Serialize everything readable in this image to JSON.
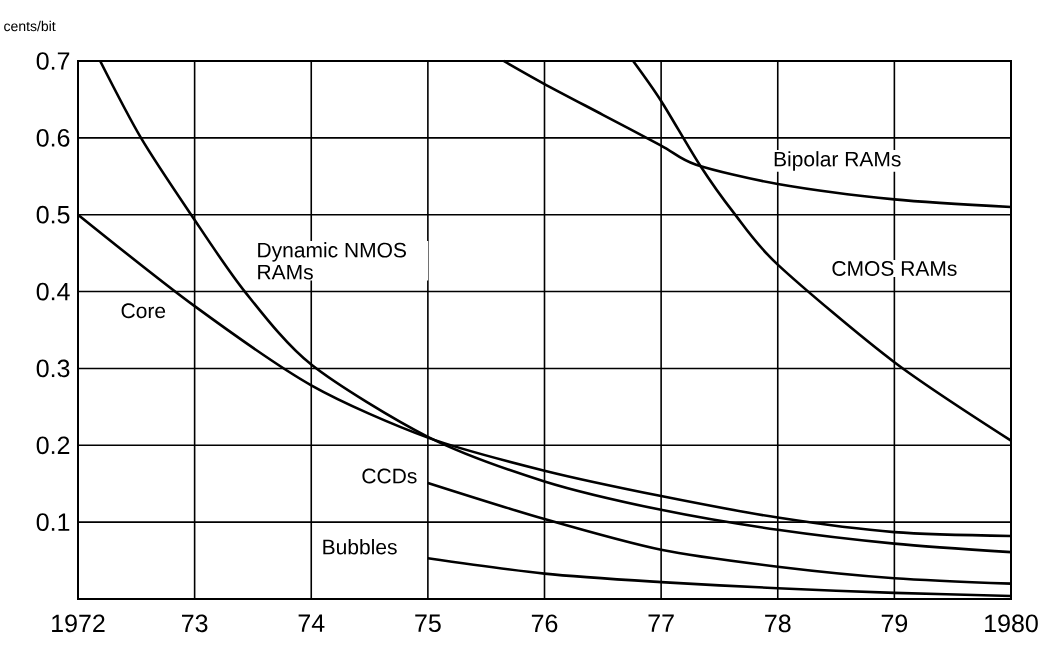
{
  "chart_data": {
    "type": "line",
    "ylabel": "cents/bit",
    "xlim": [
      1972,
      1980
    ],
    "ylim": [
      0,
      0.7
    ],
    "xticks": [
      1972,
      {
        "value": 1973,
        "label": "73"
      },
      {
        "value": 1974,
        "label": "74"
      },
      {
        "value": 1975,
        "label": "75"
      },
      {
        "value": 1976,
        "label": "76"
      },
      {
        "value": 1977,
        "label": "77"
      },
      {
        "value": 1978,
        "label": "78"
      },
      {
        "value": 1979,
        "label": "79"
      },
      1980
    ],
    "yticks": [
      0.1,
      0.2,
      0.3,
      0.4,
      0.5,
      0.6,
      0.7
    ],
    "grid": true,
    "series": [
      {
        "name": "Core",
        "color": "#000000",
        "x": [
          1972,
          1973,
          1974,
          1975,
          1976,
          1977,
          1978,
          1979,
          1980
        ],
        "values": [
          0.5,
          0.381,
          0.278,
          0.21,
          0.167,
          0.134,
          0.106,
          0.087,
          0.082
        ]
      },
      {
        "name": "Dynamic NMOS RAMs",
        "color": "#000000",
        "x": [
          1972.19,
          1972.54,
          1972.97,
          1973.43,
          1974,
          1975,
          1976,
          1977,
          1978,
          1979,
          1980
        ],
        "values": [
          0.7,
          0.6,
          0.5,
          0.4,
          0.305,
          0.211,
          0.153,
          0.116,
          0.09,
          0.072,
          0.061
        ]
      },
      {
        "name": "CCDs",
        "color": "#000000",
        "x": [
          1975,
          1976,
          1977,
          1978,
          1979,
          1980
        ],
        "values": [
          0.151,
          0.104,
          0.064,
          0.042,
          0.027,
          0.02
        ]
      },
      {
        "name": "Bubbles",
        "color": "#000000",
        "x": [
          1975,
          1976,
          1977,
          1978,
          1979,
          1980
        ],
        "values": [
          0.053,
          0.033,
          0.022,
          0.014,
          0.008,
          0.004
        ]
      },
      {
        "name": "Bipolar RAMs",
        "color": "#000000",
        "x": [
          1975.65,
          1976,
          1976.5,
          1977,
          1977.3,
          1978,
          1979,
          1980
        ],
        "values": [
          0.7,
          0.67,
          0.63,
          0.59,
          0.565,
          0.54,
          0.52,
          0.51
        ]
      },
      {
        "name": "CMOS RAMs",
        "color": "#000000",
        "x": [
          1976.76,
          1977,
          1977.33,
          1977.62,
          1978,
          1979,
          1980
        ],
        "values": [
          0.7,
          0.648,
          0.565,
          0.503,
          0.435,
          0.308,
          0.206
        ]
      }
    ]
  }
}
